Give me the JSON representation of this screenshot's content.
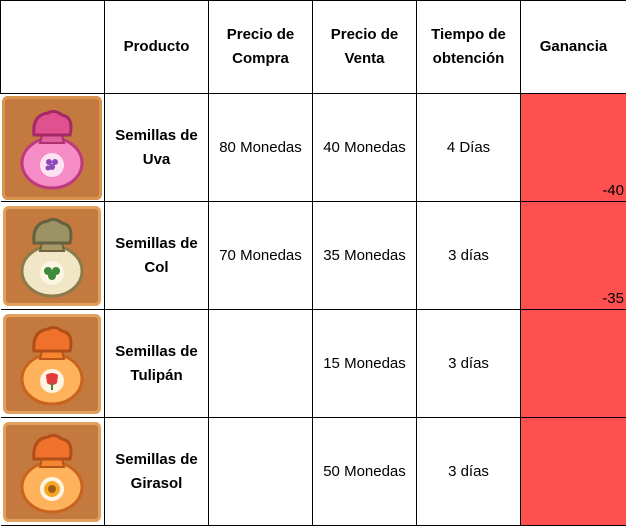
{
  "table": {
    "headers": {
      "product": "Producto",
      "buy_price": "Precio de Compra",
      "sell_price": "Precio de Venta",
      "time": "Tiempo de obtención",
      "gain": "Ganancia"
    },
    "rows": [
      {
        "icon": "grape-seed-bag-icon",
        "product": "Semillas de Uva",
        "buy_price": "80 Monedas",
        "sell_price": "40 Monedas",
        "time": "4 Días",
        "gain": "-40"
      },
      {
        "icon": "cabbage-seed-bag-icon",
        "product": "Semillas de Col",
        "buy_price": "70 Monedas",
        "sell_price": "35 Monedas",
        "time": "3 días",
        "gain": "-35"
      },
      {
        "icon": "tulip-seed-bag-icon",
        "product": "Semillas de Tulipán",
        "buy_price": "",
        "sell_price": "15 Monedas",
        "time": "3 días",
        "gain": ""
      },
      {
        "icon": "sunflower-seed-bag-icon",
        "product": "Semillas de Girasol",
        "buy_price": "",
        "sell_price": "50 Monedas",
        "time": "3 días",
        "gain": ""
      }
    ]
  },
  "colors": {
    "gain_fill": "#ff5050",
    "tile": "#c47a3e"
  }
}
